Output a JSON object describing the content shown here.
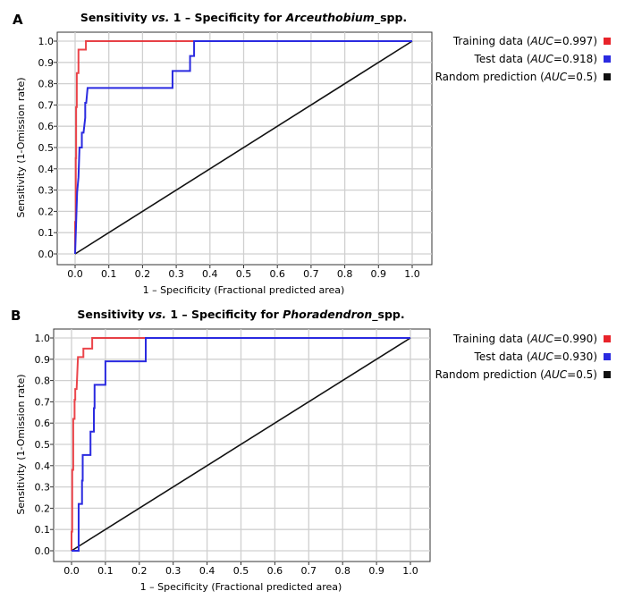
{
  "chart_data": [
    {
      "panel": "A",
      "type": "line",
      "title_prefix": "Sensitivity ",
      "title_vs": "vs.",
      "title_mid": " 1 – Specificity for ",
      "title_genus": "Arceuthobium",
      "title_suffix": "_spp.",
      "xlabel": "1 – Specificity (Fractional predicted area)",
      "ylabel": "Sensitivity (1-Omission rate)",
      "xlim": [
        0,
        1
      ],
      "ylim": [
        0,
        1
      ],
      "ticks": [
        "0.0",
        "0.1",
        "0.2",
        "0.3",
        "0.4",
        "0.5",
        "0.6",
        "0.7",
        "0.8",
        "0.9",
        "1.0"
      ],
      "grid": true,
      "legend_placement": "right",
      "series": [
        {
          "name": "Training data",
          "auc_label": "AUC",
          "auc": "=0.997)",
          "color": "#e8232a",
          "points": [
            [
              0,
              0
            ],
            [
              0,
              0.15
            ],
            [
              0.002,
              0.15
            ],
            [
              0.002,
              0.45
            ],
            [
              0.003,
              0.45
            ],
            [
              0.003,
              0.69
            ],
            [
              0.005,
              0.69
            ],
            [
              0.005,
              0.85
            ],
            [
              0.01,
              0.85
            ],
            [
              0.01,
              0.96
            ],
            [
              0.032,
              0.96
            ],
            [
              0.032,
              1
            ],
            [
              1,
              1
            ]
          ]
        },
        {
          "name": "Test data",
          "auc_label": "AUC",
          "auc": "=0.918)",
          "color": "#2a2ae0",
          "points": [
            [
              0,
              0
            ],
            [
              0.006,
              0.29
            ],
            [
              0.01,
              0.36
            ],
            [
              0.013,
              0.5
            ],
            [
              0.02,
              0.5
            ],
            [
              0.02,
              0.57
            ],
            [
              0.025,
              0.57
            ],
            [
              0.03,
              0.64
            ],
            [
              0.03,
              0.71
            ],
            [
              0.033,
              0.71
            ],
            [
              0.037,
              0.78
            ],
            [
              0.289,
              0.78
            ],
            [
              0.289,
              0.86
            ],
            [
              0.341,
              0.86
            ],
            [
              0.341,
              0.93
            ],
            [
              0.353,
              0.93
            ],
            [
              0.353,
              1
            ],
            [
              1,
              1
            ]
          ]
        },
        {
          "name": "Random prediction",
          "auc_label": "AUC",
          "auc": "=0.5)",
          "color": "#111111",
          "points": [
            [
              0,
              0
            ],
            [
              1,
              1
            ]
          ]
        }
      ]
    },
    {
      "panel": "B",
      "type": "line",
      "title_prefix": "Sensitivity ",
      "title_vs": "vs.",
      "title_mid": " 1 – Specificity for ",
      "title_genus": "Phoradendron",
      "title_suffix": "_spp.",
      "xlabel": "1 – Specificity (Fractional predicted area)",
      "ylabel": "Sensitivity (1-Omission rate)",
      "xlim": [
        0,
        1
      ],
      "ylim": [
        0,
        1
      ],
      "ticks": [
        "0.0",
        "0.1",
        "0.2",
        "0.3",
        "0.4",
        "0.5",
        "0.6",
        "0.7",
        "0.8",
        "0.9",
        "1.0"
      ],
      "grid": true,
      "legend_placement": "right",
      "series": [
        {
          "name": "Training data",
          "auc_label": "AUC",
          "auc": "=0.990)",
          "color": "#e8232a",
          "points": [
            [
              0,
              0
            ],
            [
              0,
              0.09
            ],
            [
              0.002,
              0.09
            ],
            [
              0.002,
              0.38
            ],
            [
              0.005,
              0.38
            ],
            [
              0.005,
              0.62
            ],
            [
              0.009,
              0.62
            ],
            [
              0.009,
              0.71
            ],
            [
              0.011,
              0.71
            ],
            [
              0.011,
              0.76
            ],
            [
              0.015,
              0.76
            ],
            [
              0.019,
              0.91
            ],
            [
              0.035,
              0.91
            ],
            [
              0.035,
              0.95
            ],
            [
              0.061,
              0.95
            ],
            [
              0.061,
              1
            ],
            [
              1,
              1
            ]
          ]
        },
        {
          "name": "Test data",
          "auc_label": "AUC",
          "auc": "=0.930)",
          "color": "#2a2ae0",
          "points": [
            [
              0,
              0
            ],
            [
              0.021,
              0
            ],
            [
              0.021,
              0.22
            ],
            [
              0.031,
              0.22
            ],
            [
              0.031,
              0.33
            ],
            [
              0.033,
              0.33
            ],
            [
              0.033,
              0.45
            ],
            [
              0.056,
              0.45
            ],
            [
              0.056,
              0.56
            ],
            [
              0.066,
              0.56
            ],
            [
              0.066,
              0.67
            ],
            [
              0.068,
              0.67
            ],
            [
              0.068,
              0.78
            ],
            [
              0.1,
              0.78
            ],
            [
              0.1,
              0.89
            ],
            [
              0.219,
              0.89
            ],
            [
              0.219,
              1
            ],
            [
              1,
              1
            ]
          ]
        },
        {
          "name": "Random prediction",
          "auc_label": "AUC",
          "auc": "=0.5)",
          "color": "#111111",
          "points": [
            [
              0,
              0
            ],
            [
              1,
              1
            ]
          ]
        }
      ]
    }
  ]
}
